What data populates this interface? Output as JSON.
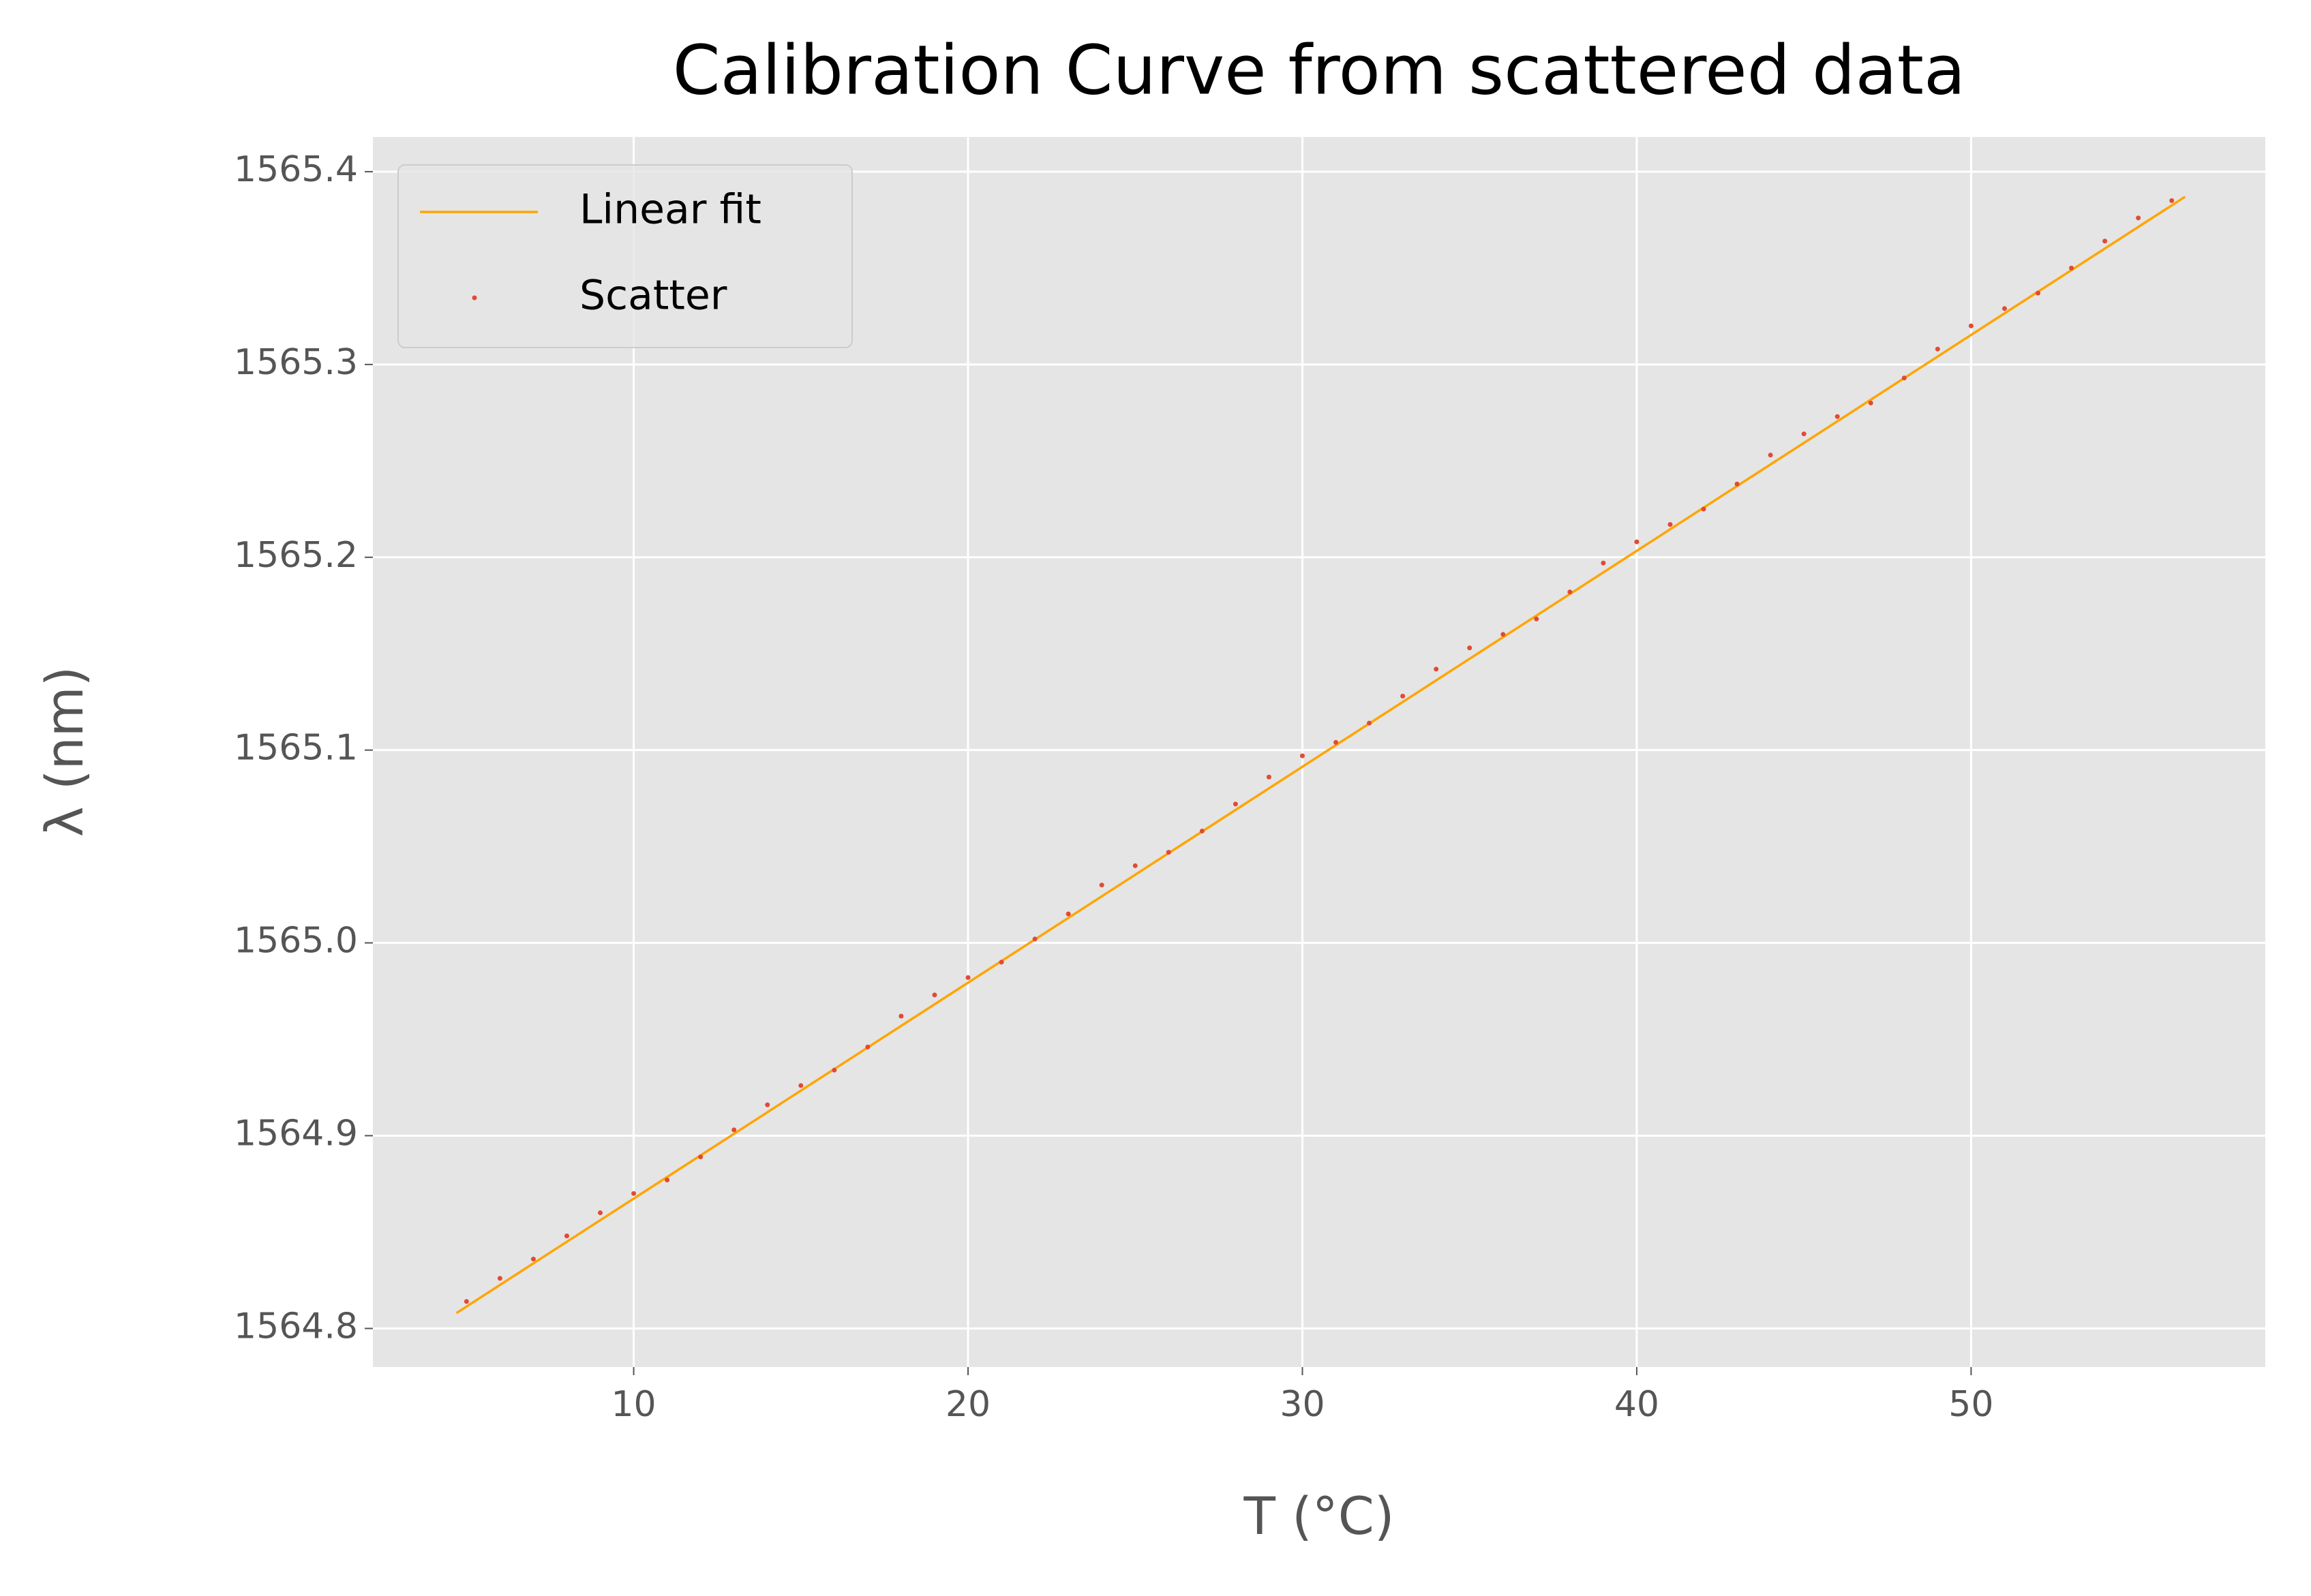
{
  "chart_data": {
    "type": "scatter",
    "title": "Calibration Curve from scattered data",
    "x_label": "T (°C)",
    "y_label": "λ (nm)",
    "xlim": [
      2.2,
      58.8
    ],
    "ylim": [
      1564.78,
      1565.418
    ],
    "xticks": [
      10,
      20,
      30,
      40,
      50
    ],
    "yticks": [
      1564.8,
      1564.9,
      {
        "value": 1565.0,
        "label": "1565.0"
      },
      1565.1,
      1565.2,
      1565.3,
      1565.4
    ],
    "grid": true,
    "legend": "upper left",
    "series": [
      {
        "name": "Linear fit",
        "type": "line",
        "color": "#FFA500",
        "x": [
          4.7,
          56.4
        ],
        "values": [
          1564.808,
          1565.387
        ]
      },
      {
        "name": "Scatter",
        "type": "scatter",
        "color": "#E24A33",
        "x": [
          5,
          6,
          7,
          8,
          9,
          10,
          11,
          12,
          13,
          14,
          15,
          16,
          17,
          18,
          19,
          20,
          21,
          22,
          23,
          24,
          25,
          26,
          27,
          28,
          29,
          30,
          31,
          32,
          33,
          34,
          35,
          36,
          37,
          38,
          39,
          40,
          41,
          42,
          43,
          44,
          45,
          46,
          47,
          48,
          49,
          50,
          51,
          52,
          53,
          54,
          55,
          56
        ],
        "values": [
          1564.814,
          1564.826,
          1564.836,
          1564.848,
          1564.86,
          1564.87,
          1564.877,
          1564.889,
          1564.903,
          1564.916,
          1564.926,
          1564.934,
          1564.946,
          1564.962,
          1564.973,
          1564.982,
          1564.99,
          1565.002,
          1565.015,
          1565.03,
          1565.04,
          1565.047,
          1565.058,
          1565.072,
          1565.086,
          1565.097,
          1565.104,
          1565.114,
          1565.128,
          1565.142,
          1565.153,
          1565.16,
          1565.168,
          1565.182,
          1565.197,
          1565.208,
          1565.217,
          1565.225,
          1565.238,
          1565.253,
          1565.264,
          1565.273,
          1565.28,
          1565.293,
          1565.308,
          1565.32,
          1565.329,
          1565.337,
          1565.35,
          1565.364,
          1565.376,
          1565.385
        ]
      }
    ]
  }
}
